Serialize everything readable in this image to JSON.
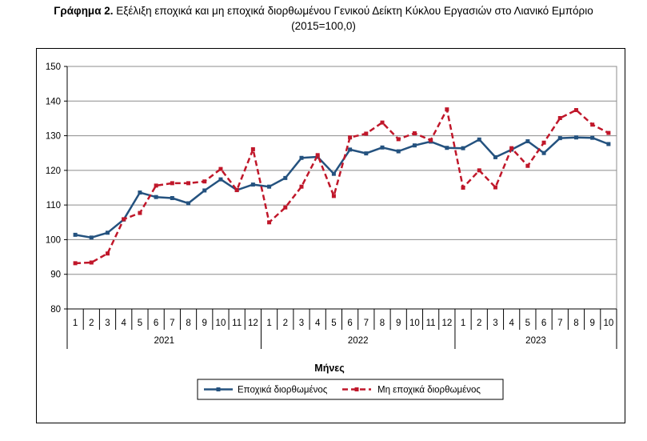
{
  "header": {
    "title_bold": "Γράφημα 2.",
    "title_text": " Εξέλιξη εποχικά και μη εποχικά διορθωμένου Γενικού Δείκτη Κύκλου Εργασιών στο Λιανικό Εμπόριο",
    "subtitle": "(2015=100,0)"
  },
  "chart_data": {
    "type": "line",
    "xlabel": "Μήνες",
    "ylabel": "",
    "ylim": [
      80,
      150
    ],
    "yticks": [
      80,
      90,
      100,
      110,
      120,
      130,
      140,
      150
    ],
    "grid": true,
    "legend_position": "bottom",
    "categories": [
      "1",
      "2",
      "3",
      "4",
      "5",
      "6",
      "7",
      "8",
      "9",
      "10",
      "11",
      "12",
      "1",
      "2",
      "3",
      "4",
      "5",
      "6",
      "7",
      "8",
      "9",
      "10",
      "11",
      "12",
      "1",
      "2",
      "3",
      "4",
      "5",
      "6",
      "7",
      "8",
      "9",
      "10"
    ],
    "year_groups": [
      {
        "label": "2021",
        "count": 12
      },
      {
        "label": "2022",
        "count": 12
      },
      {
        "label": "2023",
        "count": 10
      }
    ],
    "series": [
      {
        "name": "Εποχικά διορθωμένος",
        "color": "#24527f",
        "values": [
          101.4,
          100.6,
          102.0,
          105.8,
          113.6,
          112.3,
          112.0,
          110.5,
          114.2,
          117.4,
          114.3,
          115.9,
          115.3,
          117.8,
          123.6,
          123.9,
          119.0,
          126.0,
          124.9,
          126.6,
          125.5,
          127.2,
          128.3,
          126.5,
          126.4,
          128.9,
          123.8,
          126.0,
          128.4,
          125.0,
          129.3,
          129.5,
          129.4,
          127.6
        ]
      },
      {
        "name": "Μη εποχικά διορθωμένος",
        "color": "#c0172a",
        "values": [
          93.2,
          93.4,
          96.0,
          105.9,
          107.7,
          115.6,
          116.3,
          116.3,
          116.8,
          120.4,
          114.3,
          126.1,
          105.0,
          109.3,
          115.3,
          124.4,
          112.6,
          129.5,
          130.6,
          133.8,
          129.0,
          130.7,
          128.7,
          137.6,
          115.0,
          120.0,
          115.1,
          126.4,
          121.3,
          128.0,
          135.1,
          137.4,
          133.2,
          130.8
        ]
      }
    ]
  }
}
